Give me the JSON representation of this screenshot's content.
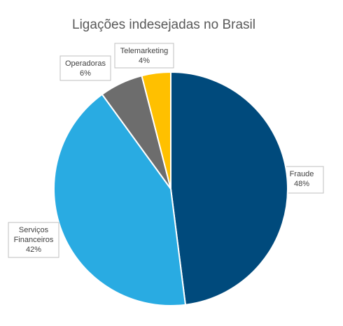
{
  "chart_data": {
    "type": "pie",
    "title": "Ligações indesejadas no Brasil",
    "categories": [
      "Fraude",
      "Serviços Financeiros",
      "Operadoras",
      "Telemarketing"
    ],
    "values": [
      48,
      42,
      6,
      4
    ],
    "value_labels": [
      "48%",
      "42%",
      "6%",
      "4%"
    ],
    "colors": [
      "#004a7c",
      "#29abe2",
      "#6d6d6d",
      "#ffc000"
    ]
  }
}
